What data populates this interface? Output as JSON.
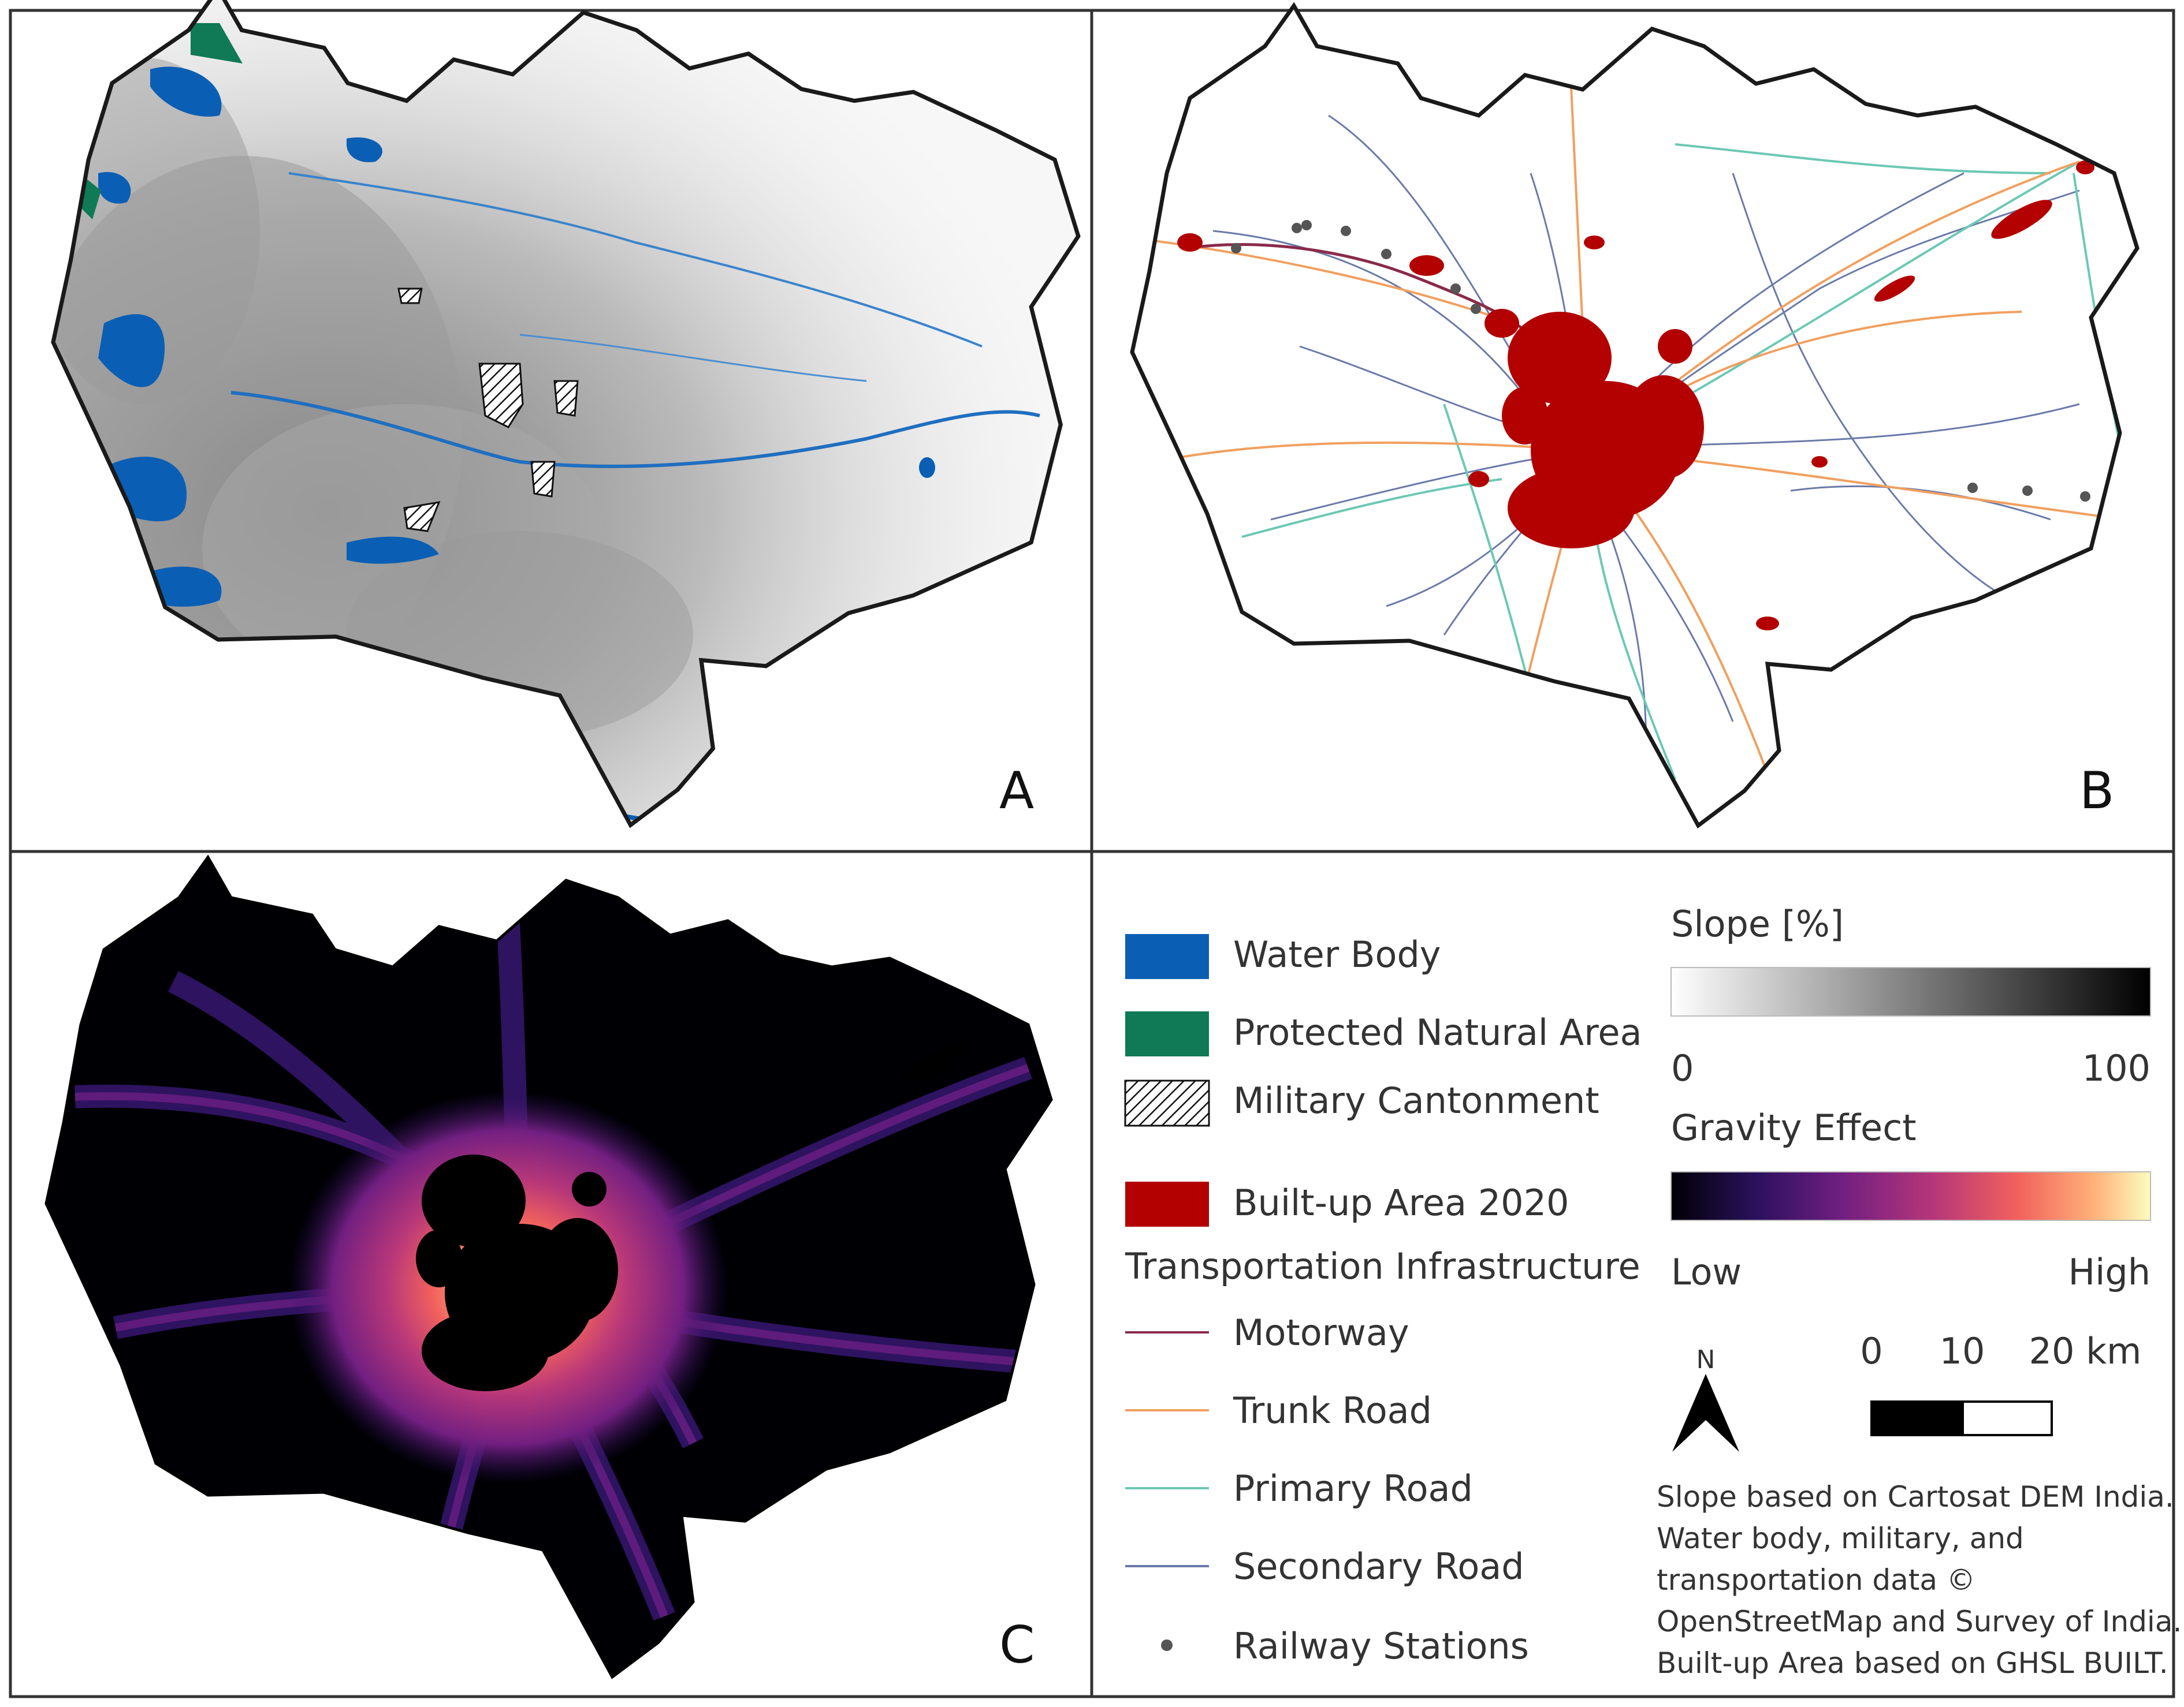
{
  "panels": {
    "a": {
      "letter": "A"
    },
    "b": {
      "letter": "B"
    },
    "c": {
      "letter": "C"
    }
  },
  "legend": {
    "water_body": {
      "label": "Water Body",
      "color": "#0a5fb4"
    },
    "protected_area": {
      "label": "Protected Natural Area",
      "color": "#0f7a55"
    },
    "military": {
      "label": "Military Cantonment"
    },
    "built_up": {
      "label": "Built-up Area 2020",
      "color": "#b30000"
    },
    "transport_heading": "Transportation Infrastructure",
    "motorway": {
      "label": "Motorway",
      "color": "#8a2a4a"
    },
    "trunk": {
      "label": "Trunk Road",
      "color": "#f0a060"
    },
    "primary": {
      "label": "Primary Road",
      "color": "#6cc8b4"
    },
    "secondary": {
      "label": "Secondary Road",
      "color": "#6a7aa8"
    },
    "railway": {
      "label": "Railway Stations",
      "color": "#555555"
    }
  },
  "slope": {
    "title": "Slope [%]",
    "min": "0",
    "max": "100"
  },
  "gravity": {
    "title": "Gravity Effect",
    "min": "Low",
    "max": "High"
  },
  "north_arrow": {
    "label": "N"
  },
  "scale_bar": {
    "t0": "0",
    "t1": "10",
    "t2": "20 km"
  },
  "credits": [
    "Slope based on Cartosat DEM India.",
    "Water body, military, and",
    "transportation data ©",
    "OpenStreetMap and Survey of India.",
    "Built-up Area based on GHSL BUILT."
  ],
  "colors": {
    "frame": "#333333",
    "boundary": "#1a1a1a",
    "slope_light": "#ffffff",
    "slope_dark": "#000000",
    "gravity_ramp": [
      "#000004",
      "#2c115f",
      "#721f81",
      "#b73779",
      "#f1605d",
      "#feb078",
      "#fcfdbf"
    ]
  }
}
